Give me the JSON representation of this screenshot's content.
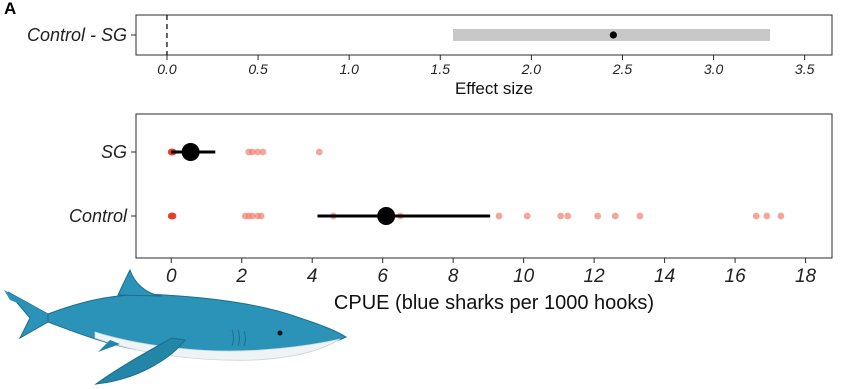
{
  "panel_label": "A",
  "colors": {
    "ci_bar": "#c8c8c8",
    "raw_point": "#f07f72",
    "raw_point_strong": "#e83a25",
    "mean": "#000000",
    "frame": "#2b2b2b",
    "shark_body": "#2a93b7",
    "shark_belly": "#eef3f4"
  },
  "chart_data": [
    {
      "type": "scatter",
      "name": "effect-size",
      "xlabel": "Effect size",
      "ylabel": "",
      "xlim": [
        -0.17,
        3.65
      ],
      "xticks": [
        0.0,
        0.5,
        1.0,
        1.5,
        2.0,
        2.5,
        3.0,
        3.5
      ],
      "xtick_labels": [
        "0.0",
        "0.5",
        "1.0",
        "1.5",
        "2.0",
        "2.5",
        "3.0",
        "3.5"
      ],
      "categories": [
        "Control - SG"
      ],
      "zero_reference_line": 0,
      "estimate": 2.45,
      "ci": [
        1.57,
        3.31
      ],
      "grid": false
    },
    {
      "type": "scatter",
      "name": "cpue",
      "xlabel": "CPUE (blue sharks per 1000 hooks)",
      "ylabel": "",
      "xlim": [
        -1.0,
        18.75
      ],
      "xticks": [
        0,
        2,
        4,
        6,
        8,
        10,
        12,
        14,
        16,
        18
      ],
      "xtick_labels": [
        "0",
        "2",
        "4",
        "6",
        "8",
        "10",
        "12",
        "14",
        "16",
        "18"
      ],
      "categories": [
        "SG",
        "Control"
      ],
      "grid": false,
      "series": [
        {
          "category": "SG",
          "points": [
            0.0,
            0.05,
            2.2,
            2.3,
            2.45,
            2.6,
            4.2
          ],
          "mean": 0.55,
          "ci": [
            0.0,
            1.25
          ]
        },
        {
          "category": "Control",
          "points": [
            0.0,
            0.05,
            2.1,
            2.2,
            2.3,
            2.45,
            2.55,
            4.6,
            6.5,
            9.3,
            10.1,
            11.05,
            11.25,
            12.1,
            12.6,
            13.3,
            16.6,
            16.9,
            17.3
          ],
          "mean": 6.1,
          "ci": [
            4.15,
            9.05
          ]
        }
      ]
    }
  ]
}
